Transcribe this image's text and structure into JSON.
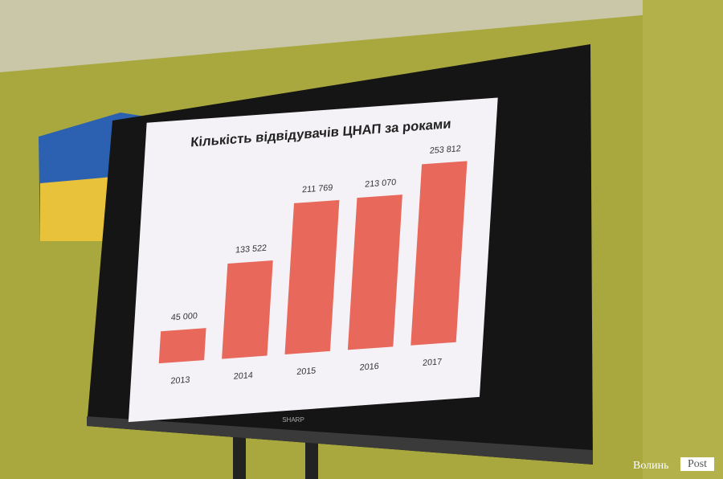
{
  "chart_data": {
    "type": "bar",
    "title": "Кількість відвідувачів ЦНАП за роками",
    "categories": [
      "2013",
      "2014",
      "2015",
      "2016",
      "2017"
    ],
    "values": [
      45000,
      133522,
      211769,
      213070,
      253812
    ],
    "value_labels": [
      "45 000",
      "133 522",
      "211 769",
      "213 070",
      "253 812"
    ],
    "color": "#e8695c"
  },
  "brand": "SHARP",
  "watermark": {
    "name": "Волинь",
    "tag": "Post"
  }
}
